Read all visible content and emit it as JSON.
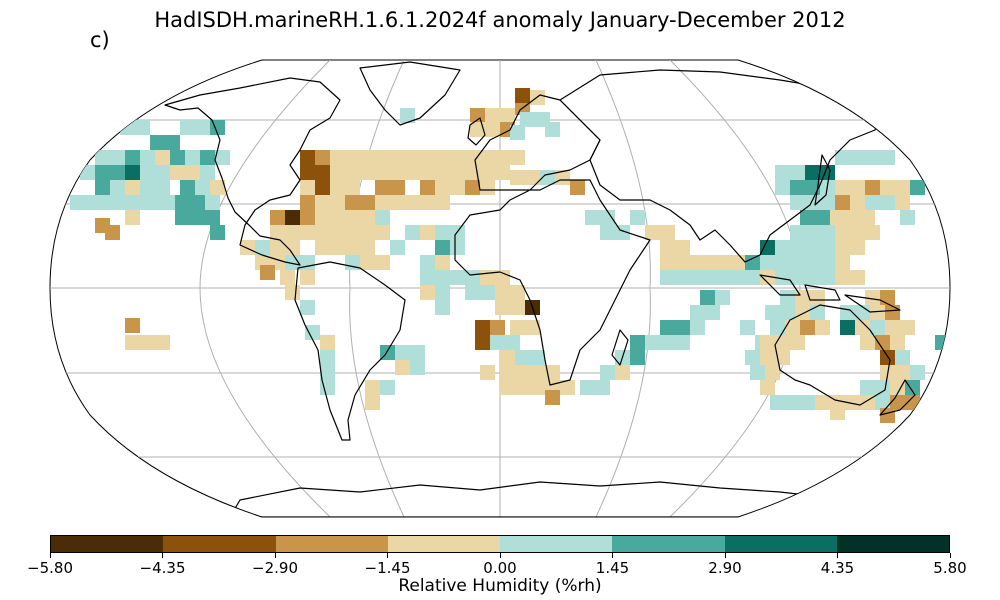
{
  "title": "HadISDH.marineRH.1.6.1.2024f anomaly January-December 2012",
  "panel_label": "c)",
  "colorbar": {
    "label": "Relative Humidity (%rh)",
    "ticks": [
      "−5.80",
      "−4.35",
      "−2.90",
      "−1.45",
      "0.00",
      "1.45",
      "2.90",
      "4.35",
      "5.80"
    ],
    "colors": [
      "#4a2c07",
      "#8c510a",
      "#c9954a",
      "#ebd7a6",
      "#afdfd8",
      "#4aa99d",
      "#0a6e62",
      "#013228"
    ]
  },
  "map": {
    "projection": "Robinson",
    "grid": true,
    "continent_outline_color": "#000000",
    "gridline_color": "#b0b0b0"
  }
}
